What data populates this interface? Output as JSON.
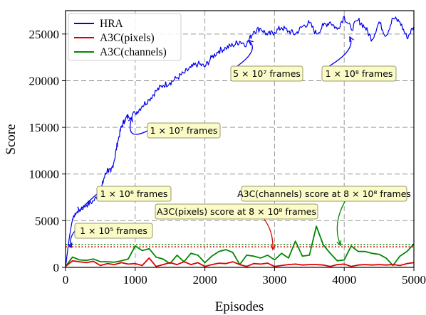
{
  "chart_data": {
    "type": "line",
    "xlabel": "Episodes",
    "ylabel": "Score",
    "xlim": [
      0,
      5000
    ],
    "ylim": [
      0,
      27500
    ],
    "xticks": [
      0,
      1000,
      2000,
      3000,
      4000,
      5000
    ],
    "yticks": [
      0,
      5000,
      10000,
      15000,
      20000,
      25000
    ],
    "grid": true,
    "legend_position": "top-left",
    "series": [
      {
        "name": "HRA",
        "color": "#0000ee",
        "points": [
          [
            0,
            0
          ],
          [
            30,
            1800
          ],
          [
            60,
            3500
          ],
          [
            100,
            5200
          ],
          [
            150,
            5800
          ],
          [
            200,
            6100
          ],
          [
            300,
            6700
          ],
          [
            400,
            7100
          ],
          [
            500,
            8000
          ],
          [
            550,
            9500
          ],
          [
            600,
            10500
          ],
          [
            650,
            10200
          ],
          [
            700,
            11500
          ],
          [
            750,
            13500
          ],
          [
            800,
            15000
          ],
          [
            850,
            15800
          ],
          [
            900,
            16200
          ],
          [
            1000,
            16500
          ],
          [
            1100,
            17300
          ],
          [
            1200,
            18000
          ],
          [
            1300,
            18900
          ],
          [
            1400,
            19500
          ],
          [
            1500,
            19800
          ],
          [
            1600,
            20300
          ],
          [
            1700,
            20800
          ],
          [
            1800,
            21400
          ],
          [
            1900,
            21800
          ],
          [
            2000,
            21500
          ],
          [
            2100,
            22500
          ],
          [
            2200,
            23200
          ],
          [
            2300,
            23500
          ],
          [
            2400,
            23800
          ],
          [
            2500,
            24200
          ],
          [
            2600,
            23900
          ],
          [
            2700,
            25300
          ],
          [
            2800,
            25600
          ],
          [
            2900,
            24900
          ],
          [
            3000,
            25200
          ],
          [
            3100,
            25700
          ],
          [
            3200,
            25300
          ],
          [
            3300,
            25000
          ],
          [
            3400,
            25800
          ],
          [
            3500,
            26200
          ],
          [
            3600,
            25000
          ],
          [
            3700,
            25900
          ],
          [
            3800,
            26300
          ],
          [
            3900,
            25500
          ],
          [
            4000,
            26900
          ],
          [
            4100,
            25500
          ],
          [
            4200,
            26500
          ],
          [
            4300,
            25700
          ],
          [
            4400,
            24400
          ],
          [
            4500,
            26300
          ],
          [
            4600,
            24800
          ],
          [
            4700,
            26700
          ],
          [
            4800,
            26300
          ],
          [
            4900,
            24600
          ],
          [
            5000,
            25800
          ]
        ]
      },
      {
        "name": "A3C(pixels)",
        "color": "#dd0000",
        "points": [
          [
            0,
            100
          ],
          [
            100,
            700
          ],
          [
            200,
            600
          ],
          [
            300,
            500
          ],
          [
            400,
            650
          ],
          [
            500,
            200
          ],
          [
            600,
            400
          ],
          [
            700,
            300
          ],
          [
            800,
            500
          ],
          [
            900,
            350
          ],
          [
            1000,
            400
          ],
          [
            1100,
            200
          ],
          [
            1200,
            1000
          ],
          [
            1300,
            100
          ],
          [
            1400,
            300
          ],
          [
            1500,
            500
          ],
          [
            1600,
            300
          ],
          [
            1700,
            600
          ],
          [
            1800,
            300
          ],
          [
            1900,
            500
          ],
          [
            2000,
            100
          ],
          [
            2100,
            300
          ],
          [
            2200,
            450
          ],
          [
            2300,
            400
          ],
          [
            2400,
            600
          ],
          [
            2500,
            300
          ],
          [
            2600,
            100
          ],
          [
            2700,
            400
          ],
          [
            2800,
            350
          ],
          [
            2900,
            450
          ],
          [
            3000,
            100
          ],
          [
            3100,
            200
          ],
          [
            3200,
            300
          ],
          [
            3300,
            350
          ],
          [
            3400,
            250
          ],
          [
            3500,
            300
          ],
          [
            3600,
            300
          ],
          [
            3700,
            250
          ],
          [
            3800,
            100
          ],
          [
            3900,
            300
          ],
          [
            4000,
            350
          ],
          [
            4100,
            100
          ],
          [
            4200,
            250
          ],
          [
            4300,
            300
          ],
          [
            4400,
            250
          ],
          [
            4500,
            300
          ],
          [
            4600,
            250
          ],
          [
            4700,
            300
          ],
          [
            4800,
            200
          ],
          [
            4900,
            400
          ],
          [
            5000,
            500
          ]
        ]
      },
      {
        "name": "A3C(channels)",
        "color": "#008800",
        "points": [
          [
            0,
            100
          ],
          [
            100,
            1100
          ],
          [
            200,
            800
          ],
          [
            300,
            750
          ],
          [
            400,
            900
          ],
          [
            500,
            600
          ],
          [
            600,
            600
          ],
          [
            700,
            550
          ],
          [
            800,
            700
          ],
          [
            900,
            900
          ],
          [
            1000,
            2300
          ],
          [
            1100,
            1800
          ],
          [
            1200,
            2000
          ],
          [
            1300,
            1100
          ],
          [
            1400,
            900
          ],
          [
            1500,
            400
          ],
          [
            1600,
            1300
          ],
          [
            1700,
            600
          ],
          [
            1800,
            1500
          ],
          [
            1900,
            1300
          ],
          [
            2000,
            500
          ],
          [
            2100,
            1200
          ],
          [
            2200,
            1700
          ],
          [
            2300,
            1900
          ],
          [
            2400,
            1600
          ],
          [
            2500,
            300
          ],
          [
            2600,
            1300
          ],
          [
            2700,
            1200
          ],
          [
            2800,
            1000
          ],
          [
            2900,
            1300
          ],
          [
            3000,
            800
          ],
          [
            3100,
            1500
          ],
          [
            3200,
            1000
          ],
          [
            3300,
            2800
          ],
          [
            3400,
            1200
          ],
          [
            3500,
            1300
          ],
          [
            3600,
            4400
          ],
          [
            3700,
            2400
          ],
          [
            3800,
            1500
          ],
          [
            3900,
            700
          ],
          [
            4000,
            800
          ],
          [
            4100,
            2300
          ],
          [
            4200,
            1700
          ],
          [
            4300,
            1700
          ],
          [
            4400,
            1500
          ],
          [
            4500,
            1400
          ],
          [
            4600,
            1000
          ],
          [
            4700,
            200
          ],
          [
            4800,
            1200
          ],
          [
            4900,
            1700
          ],
          [
            5000,
            2500
          ]
        ]
      }
    ],
    "reference_lines": [
      {
        "name": "A3C(pixels) score at 8 × 10⁸ frames",
        "y": 2200,
        "color": "#dd0000",
        "style": "dotted"
      },
      {
        "name": "A3C(channels) score at 8 × 10⁸ frames",
        "y": 2450,
        "color": "#008800",
        "style": "dotted"
      }
    ],
    "annotations": [
      {
        "id": "a1e5",
        "text": "1 × 10⁵ frames",
        "x": 50,
        "y": 1900
      },
      {
        "id": "a1e6",
        "text": "1 × 10⁶ frames",
        "x": 230,
        "y": 5900
      },
      {
        "id": "a1e7",
        "text": "1 × 10⁷ frames",
        "x": 970,
        "y": 15900
      },
      {
        "id": "a5e7",
        "text": "5 × 10⁷ frames",
        "x": 2670,
        "y": 24700
      },
      {
        "id": "a1e8",
        "text": "1 × 10⁸ frames",
        "x": 4080,
        "y": 26100
      },
      {
        "id": "apix",
        "text": "A3C(pixels) score at 8 × 10⁸ frames",
        "x": 2970,
        "y": 2200
      },
      {
        "id": "achan",
        "text": "A3C(channels) score at 8 × 10⁸ frames",
        "x": 3980,
        "y": 2450
      }
    ]
  }
}
